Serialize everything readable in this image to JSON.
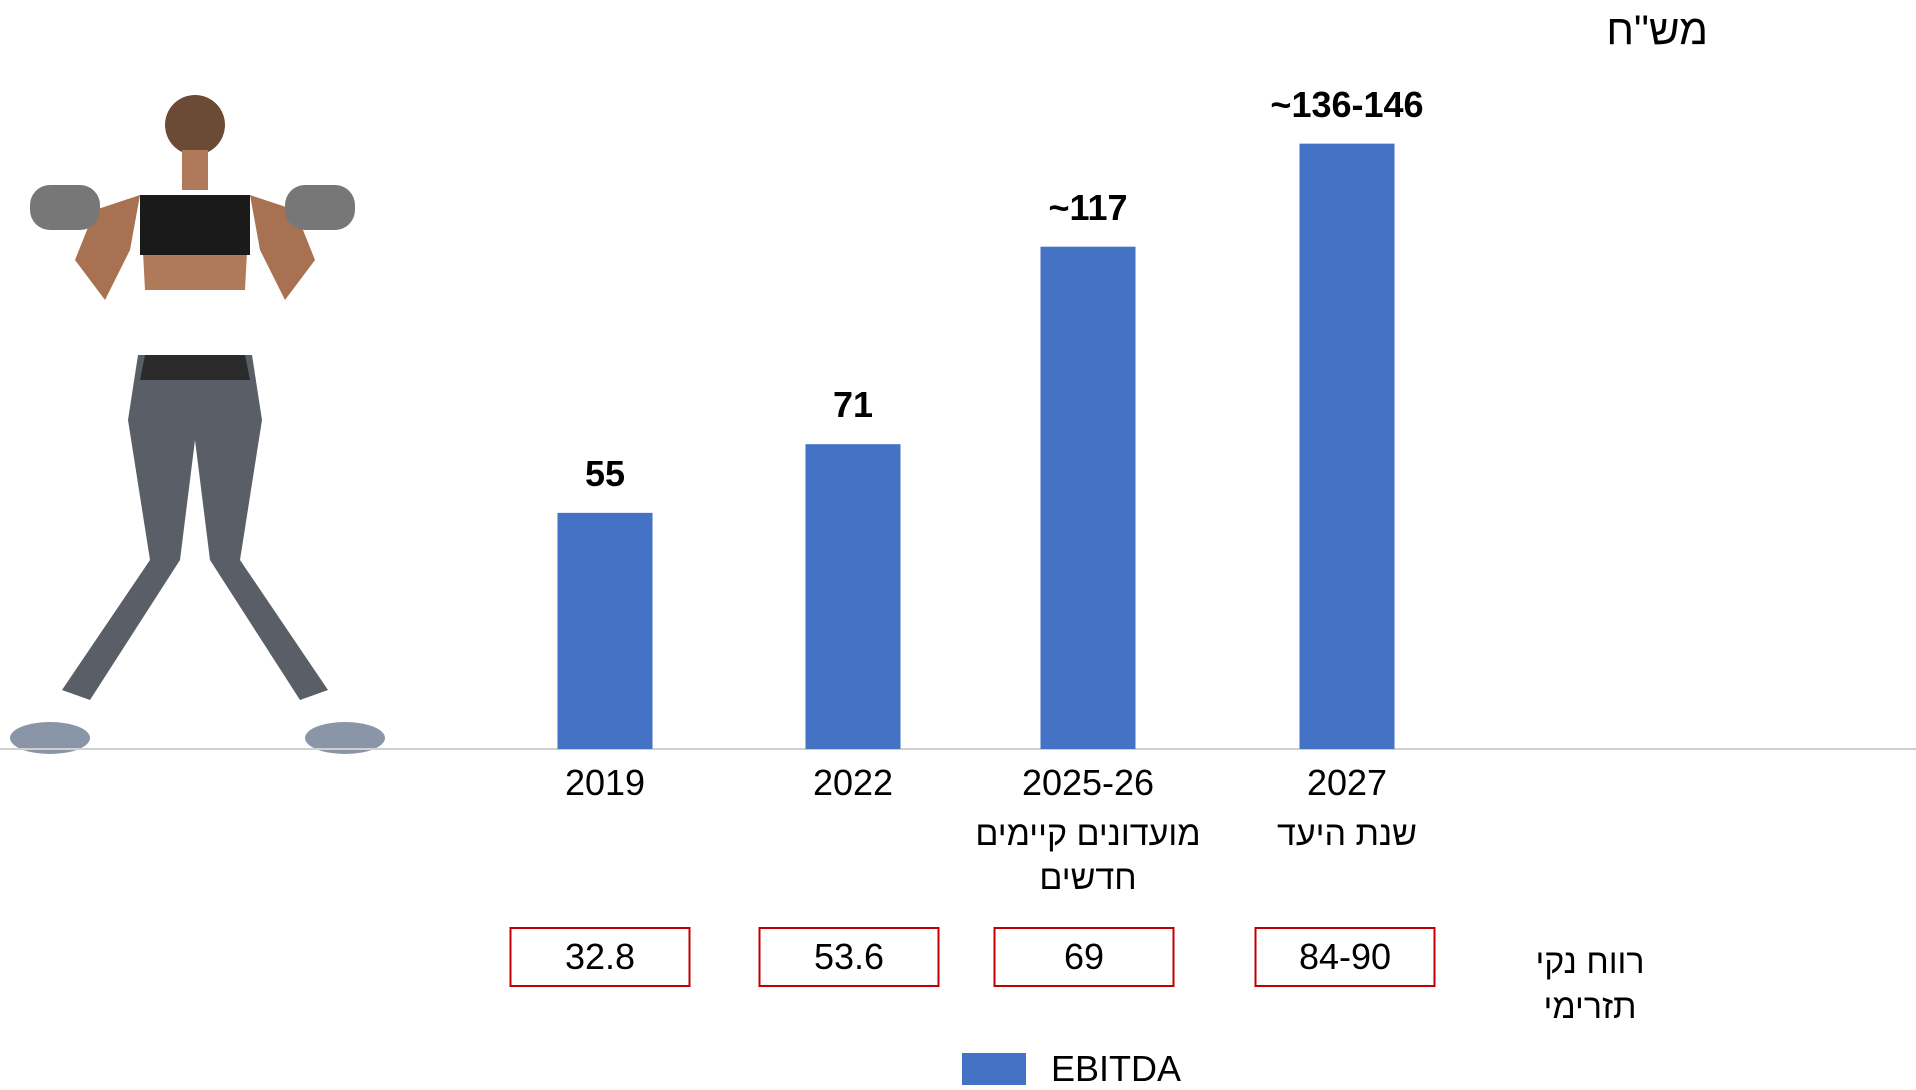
{
  "chart_data": {
    "type": "bar",
    "unit": "מש\"ח",
    "categories": [
      "2019",
      "2022",
      "2025-26",
      "2027"
    ],
    "category_notes": [
      null,
      null,
      "מועדונים קיימים חדשים",
      "שנת היעד"
    ],
    "series": [
      {
        "name": "EBITDA",
        "color": "#4472c4",
        "values": [
          55,
          71,
          117,
          141
        ],
        "value_labels": [
          "55",
          "71",
          "~117",
          "~136-146"
        ]
      }
    ],
    "ylim": [
      0,
      150
    ],
    "net_profit": {
      "label": "רווח נקי תזרימי",
      "values": [
        "32.8",
        "53.6",
        "69",
        "84-90"
      ]
    }
  }
}
